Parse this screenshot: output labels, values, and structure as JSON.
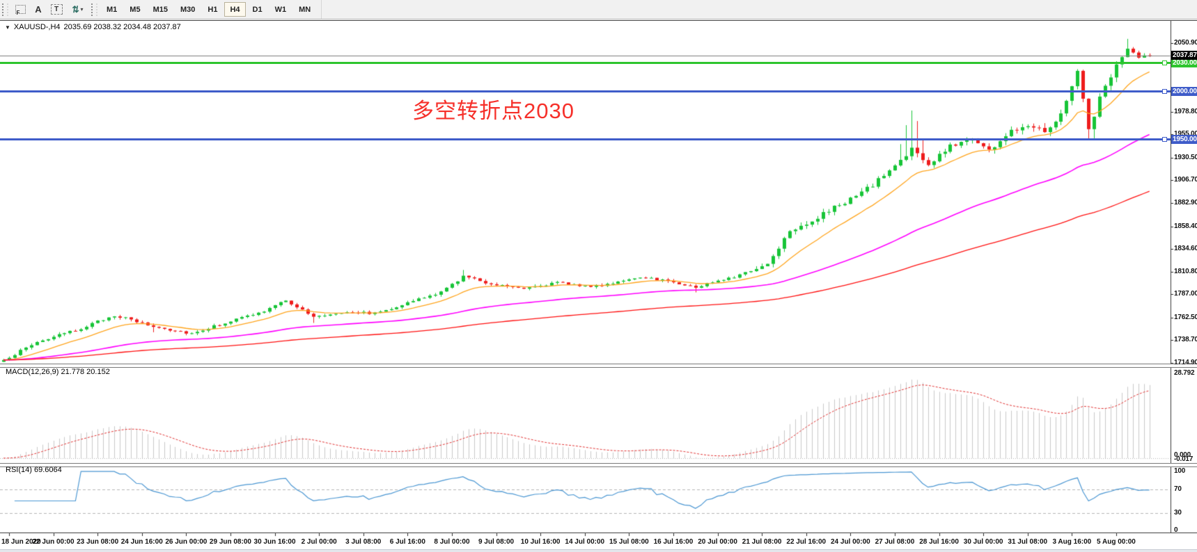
{
  "toolbar": {
    "tools": [
      {
        "id": "snap-grid-icon",
        "glyph": "F"
      },
      {
        "id": "text-label-icon",
        "glyph": "A"
      },
      {
        "id": "text-box-icon",
        "glyph": "T"
      },
      {
        "id": "arrow-tool-icon",
        "glyph": "⇅",
        "caret": "▾"
      }
    ],
    "timeframes": [
      {
        "label": "M1",
        "active": false
      },
      {
        "label": "M5",
        "active": false
      },
      {
        "label": "M15",
        "active": false
      },
      {
        "label": "M30",
        "active": false
      },
      {
        "label": "H1",
        "active": false
      },
      {
        "label": "H4",
        "active": true
      },
      {
        "label": "D1",
        "active": false
      },
      {
        "label": "W1",
        "active": false
      },
      {
        "label": "MN",
        "active": false
      }
    ]
  },
  "chart": {
    "title": {
      "caret": "▼",
      "symbol_period": "XAUUSD-,H4",
      "values": "2035.69 2038.32 2034.48 2037.87",
      "open": "2035.69",
      "high": "2038.32",
      "low": "2034.48",
      "close": "2037.87"
    },
    "annotation": {
      "text": "多空转折点2030",
      "color": "#f6302a"
    },
    "current_price": {
      "label": "2037.87",
      "value": 2037.87
    },
    "hlines": [
      {
        "label": "2030.00",
        "value": 2030,
        "color": "#2ec52e"
      },
      {
        "label": "2000.00",
        "value": 2000,
        "color": "#3f5cc9"
      },
      {
        "label": "1950.00",
        "value": 1950,
        "color": "#3f5cc9"
      }
    ],
    "price_ticks": [
      {
        "label": "2050.90",
        "value": 2050.9
      },
      {
        "label": "2027.10",
        "value": 2027.1
      },
      {
        "label": "1978.80",
        "value": 1978.8
      },
      {
        "label": "1955.00",
        "value": 1955.0
      },
      {
        "label": "1930.50",
        "value": 1930.5
      },
      {
        "label": "1906.70",
        "value": 1906.7
      },
      {
        "label": "1882.90",
        "value": 1882.9
      },
      {
        "label": "1858.40",
        "value": 1858.4
      },
      {
        "label": "1834.60",
        "value": 1834.6
      },
      {
        "label": "1810.80",
        "value": 1810.8
      },
      {
        "label": "1787.00",
        "value": 1787.0
      },
      {
        "label": "1762.50",
        "value": 1762.5
      },
      {
        "label": "1738.70",
        "value": 1738.7
      },
      {
        "label": "1714.90",
        "value": 1714.9
      }
    ],
    "time_ticks": [
      "18 Jun 2020",
      "22 Jun 00:00",
      "23 Jun 08:00",
      "24 Jun 16:00",
      "26 Jun 00:00",
      "29 Jun 08:00",
      "30 Jun 16:00",
      "2 Jul 00:00",
      "3 Jul 08:00",
      "6 Jul 16:00",
      "8 Jul 00:00",
      "9 Jul 08:00",
      "10 Jul 16:00",
      "14 Jul 00:00",
      "15 Jul 08:00",
      "16 Jul 16:00",
      "20 Jul 00:00",
      "21 Jul 08:00",
      "22 Jul 16:00",
      "24 Jul 00:00",
      "27 Jul 08:00",
      "28 Jul 16:00",
      "30 Jul 00:00",
      "31 Jul 08:00",
      "3 Aug 16:00",
      "5 Aug 00:00"
    ],
    "colors": {
      "candle_up": "#17c437",
      "candle_down": "#ee1c1c",
      "ma_fast": "#ffa41c",
      "ma_mid": "#ff00ff",
      "ma_slow": "#ff1010",
      "hline_green": "#2ec52e",
      "hline_blue": "#3f5cc9",
      "current_price_line": "#838383",
      "current_price_label_bg": "#000000",
      "macd_hist": "#c9c9c9",
      "macd_signal": "#e03030",
      "rsi_line": "#4a96d2",
      "level_dash": "#b5b5b5"
    }
  },
  "indicators": {
    "macd": {
      "label": "MACD(12,26,9) 21.778 20.152",
      "params": [
        12,
        26,
        9
      ],
      "main_value": 21.778,
      "signal_value": 20.152,
      "scale_top": "28.792",
      "scale_zero": "0.000",
      "scale_bottom": "-0.017"
    },
    "rsi": {
      "label": "RSI(14) 69.6064",
      "period": 14,
      "value": 69.6064,
      "levels": [
        {
          "label": "100",
          "value": 100
        },
        {
          "label": "70",
          "value": 70
        },
        {
          "label": "30",
          "value": 30
        },
        {
          "label": "0",
          "value": 0
        }
      ]
    }
  },
  "chart_data": {
    "type": "candlestick",
    "symbol": "XAUUSD-",
    "period": "H4",
    "bars": 208,
    "ylim": [
      1714.9,
      2074.2
    ],
    "current_ohlc": {
      "open": 2035.69,
      "high": 2038.32,
      "low": 2034.48,
      "close": 2037.87
    },
    "price_path_anchors": [
      [
        0,
        1718
      ],
      [
        6,
        1737
      ],
      [
        13,
        1749
      ],
      [
        20,
        1765
      ],
      [
        27,
        1753
      ],
      [
        34,
        1746
      ],
      [
        41,
        1759
      ],
      [
        47,
        1769
      ],
      [
        51,
        1781
      ],
      [
        56,
        1763
      ],
      [
        62,
        1769
      ],
      [
        67,
        1767
      ],
      [
        73,
        1778
      ],
      [
        79,
        1789
      ],
      [
        83,
        1806
      ],
      [
        88,
        1798
      ],
      [
        94,
        1794
      ],
      [
        100,
        1799
      ],
      [
        107,
        1795
      ],
      [
        112,
        1802
      ],
      [
        117,
        1804
      ],
      [
        121,
        1800
      ],
      [
        125,
        1794
      ],
      [
        129,
        1802
      ],
      [
        133,
        1807
      ],
      [
        138,
        1819
      ],
      [
        142,
        1855
      ],
      [
        146,
        1864
      ],
      [
        150,
        1878
      ],
      [
        154,
        1890
      ],
      [
        157,
        1902
      ],
      [
        161,
        1922
      ],
      [
        164,
        1940
      ],
      [
        167,
        1922
      ],
      [
        171,
        1943
      ],
      [
        175,
        1951
      ],
      [
        178,
        1938
      ],
      [
        182,
        1958
      ],
      [
        185,
        1966
      ],
      [
        188,
        1960
      ],
      [
        191,
        1975
      ],
      [
        193,
        2008
      ],
      [
        194,
        2022
      ],
      [
        196,
        1960
      ],
      [
        198,
        1992
      ],
      [
        200,
        2018
      ],
      [
        202,
        2035
      ],
      [
        203,
        2044
      ],
      [
        205,
        2036
      ],
      [
        207,
        2037.87
      ]
    ],
    "wick_boost_high": {
      "83": 6,
      "162": 16,
      "163": 30,
      "164": 38,
      "165": 24,
      "166": 12,
      "203": 8
    },
    "wick_boost_low": {
      "27": 4,
      "56": 5,
      "125": 4,
      "196": 10,
      "197": 6
    },
    "moving_averages": [
      {
        "name": "fast",
        "period": 13,
        "color": "#ffa41c"
      },
      {
        "name": "medium",
        "period": 60,
        "color": "#ff00ff"
      },
      {
        "name": "slow",
        "period": 130,
        "color": "#ff1010"
      }
    ],
    "horizontal_levels": [
      2030,
      2000,
      1950
    ],
    "sub_indicators": [
      {
        "type": "macd",
        "fast": 12,
        "slow": 26,
        "signal": 9,
        "scale_max": 28.792
      },
      {
        "type": "rsi",
        "period": 14,
        "levels": [
          70,
          30
        ]
      }
    ]
  }
}
